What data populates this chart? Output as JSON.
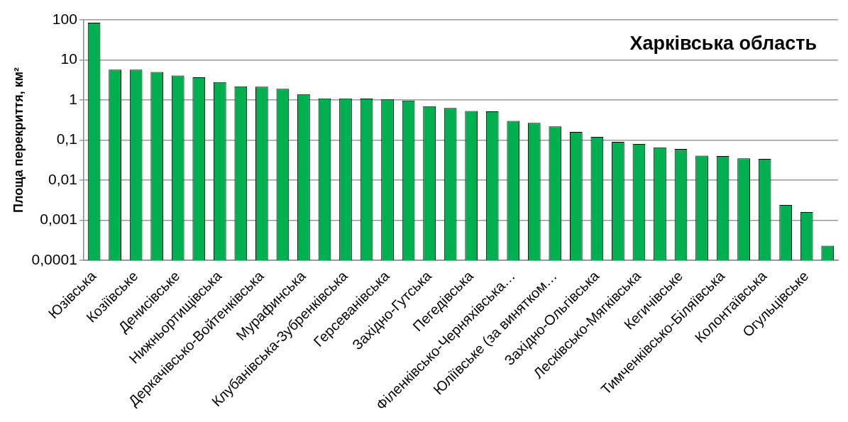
{
  "chart_data": {
    "type": "bar",
    "title": "Харківська область",
    "ylabel": "Площа перекриття, км²",
    "categories": [
      "Юзівська",
      null,
      "Козіївське",
      null,
      "Денисівське",
      null,
      "Нижньортищівська",
      null,
      "Деркачівсько-Войтенківська",
      null,
      "Мурафинська",
      null,
      "Клубанівська-Зубренківська",
      null,
      "Герсеванівська",
      null,
      "Західно-Гутська",
      null,
      "Пегедівська",
      null,
      "Філенківсько-Черняхівська…",
      null,
      "Юліївське (за винятком…",
      null,
      "Західно-Ольгівська",
      null,
      "Лесківсько-Мягківська",
      null,
      "Кегичівське",
      null,
      "Тимченківсько-Біляївська",
      null,
      "Колонтаївська",
      null,
      "Огульцівське",
      null
    ],
    "values": [
      85,
      5.7,
      5.7,
      5.0,
      4.1,
      3.7,
      2.8,
      2.2,
      2.15,
      1.9,
      1.4,
      1.1,
      1.1,
      1.08,
      1.05,
      0.97,
      0.7,
      0.63,
      0.53,
      0.52,
      0.3,
      0.27,
      0.22,
      0.16,
      0.12,
      0.09,
      0.08,
      0.066,
      0.06,
      0.041,
      0.04,
      0.035,
      0.034,
      0.0024,
      0.0016,
      0.00023
    ],
    "color": "#00b050",
    "log": true,
    "ylim": [
      0.0001,
      100
    ],
    "yticks": [
      {
        "value": 0.0001,
        "label": "0,0001"
      },
      {
        "value": 0.001,
        "label": "0,001"
      },
      {
        "value": 0.01,
        "label": "0,01"
      },
      {
        "value": 0.1,
        "label": "0,1"
      },
      1,
      10,
      100
    ],
    "grid": "y",
    "legend": false
  }
}
